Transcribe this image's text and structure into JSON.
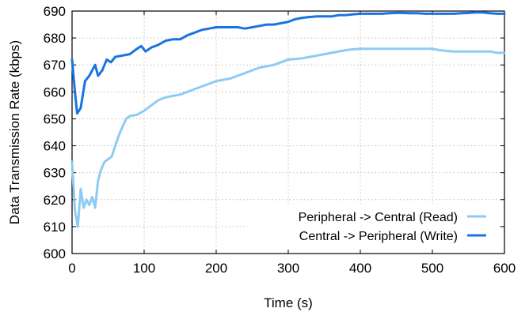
{
  "chart_data": {
    "type": "line",
    "xlabel": "Time (s)",
    "ylabel": "Data Transmission Rate (kbps)",
    "xlim": [
      0,
      600
    ],
    "ylim": [
      600,
      690
    ],
    "x_ticks": [
      0,
      100,
      200,
      300,
      400,
      500,
      600
    ],
    "y_ticks": [
      600,
      610,
      620,
      630,
      640,
      650,
      660,
      670,
      680,
      690
    ],
    "grid": "dotted",
    "legend_position": "bottom-right",
    "series": [
      {
        "name": "Peripheral -> Central (Read)",
        "color": "#8ecbf2",
        "points": [
          [
            0,
            634
          ],
          [
            4,
            616
          ],
          [
            8,
            610
          ],
          [
            12,
            624
          ],
          [
            16,
            617
          ],
          [
            20,
            620
          ],
          [
            24,
            618
          ],
          [
            28,
            621
          ],
          [
            32,
            617
          ],
          [
            36,
            627
          ],
          [
            40,
            631
          ],
          [
            45,
            634
          ],
          [
            50,
            635
          ],
          [
            55,
            636
          ],
          [
            60,
            640
          ],
          [
            65,
            644
          ],
          [
            70,
            647
          ],
          [
            75,
            650
          ],
          [
            80,
            651
          ],
          [
            90,
            651.5
          ],
          [
            100,
            653
          ],
          [
            110,
            655
          ],
          [
            120,
            657
          ],
          [
            130,
            658
          ],
          [
            140,
            658.5
          ],
          [
            150,
            659
          ],
          [
            160,
            660
          ],
          [
            170,
            661
          ],
          [
            180,
            662
          ],
          [
            190,
            663
          ],
          [
            200,
            664
          ],
          [
            210,
            664.5
          ],
          [
            220,
            665
          ],
          [
            230,
            666
          ],
          [
            240,
            667
          ],
          [
            250,
            668
          ],
          [
            260,
            669
          ],
          [
            270,
            669.5
          ],
          [
            280,
            670
          ],
          [
            290,
            671
          ],
          [
            300,
            672
          ],
          [
            310,
            672.2
          ],
          [
            320,
            672.5
          ],
          [
            330,
            673
          ],
          [
            340,
            673.5
          ],
          [
            350,
            674
          ],
          [
            360,
            674.5
          ],
          [
            370,
            675
          ],
          [
            380,
            675.5
          ],
          [
            390,
            675.8
          ],
          [
            400,
            676
          ],
          [
            410,
            676
          ],
          [
            420,
            676
          ],
          [
            430,
            676
          ],
          [
            440,
            676
          ],
          [
            450,
            676
          ],
          [
            460,
            676
          ],
          [
            470,
            676
          ],
          [
            480,
            676
          ],
          [
            490,
            676
          ],
          [
            500,
            676
          ],
          [
            510,
            675.5
          ],
          [
            520,
            675.2
          ],
          [
            530,
            675
          ],
          [
            540,
            675
          ],
          [
            550,
            675
          ],
          [
            560,
            675
          ],
          [
            570,
            675
          ],
          [
            580,
            675
          ],
          [
            590,
            674.5
          ],
          [
            600,
            674.5
          ]
        ]
      },
      {
        "name": "Central -> Peripheral (Write)",
        "color": "#1a73e0",
        "points": [
          [
            0,
            672
          ],
          [
            4,
            660
          ],
          [
            7,
            652
          ],
          [
            12,
            654
          ],
          [
            18,
            664
          ],
          [
            24,
            666
          ],
          [
            28,
            668
          ],
          [
            32,
            670
          ],
          [
            36,
            666
          ],
          [
            42,
            668
          ],
          [
            48,
            672
          ],
          [
            54,
            671
          ],
          [
            60,
            673
          ],
          [
            70,
            673.5
          ],
          [
            80,
            674
          ],
          [
            90,
            676
          ],
          [
            96,
            677
          ],
          [
            102,
            675
          ],
          [
            110,
            676.5
          ],
          [
            120,
            677.5
          ],
          [
            130,
            679
          ],
          [
            140,
            679.5
          ],
          [
            150,
            679.5
          ],
          [
            160,
            681
          ],
          [
            170,
            682
          ],
          [
            180,
            683
          ],
          [
            190,
            683.5
          ],
          [
            200,
            684
          ],
          [
            210,
            684
          ],
          [
            220,
            684
          ],
          [
            230,
            684
          ],
          [
            240,
            683.5
          ],
          [
            250,
            684
          ],
          [
            260,
            684.5
          ],
          [
            270,
            685
          ],
          [
            280,
            685
          ],
          [
            290,
            685.5
          ],
          [
            300,
            686
          ],
          [
            310,
            687
          ],
          [
            320,
            687.5
          ],
          [
            330,
            687.8
          ],
          [
            340,
            688
          ],
          [
            350,
            688
          ],
          [
            360,
            688
          ],
          [
            370,
            688.5
          ],
          [
            380,
            688.5
          ],
          [
            390,
            688.8
          ],
          [
            400,
            689
          ],
          [
            410,
            689
          ],
          [
            420,
            689
          ],
          [
            430,
            689
          ],
          [
            440,
            689.2
          ],
          [
            450,
            689.3
          ],
          [
            460,
            689.3
          ],
          [
            470,
            689.2
          ],
          [
            480,
            689.2
          ],
          [
            490,
            689
          ],
          [
            500,
            689
          ],
          [
            510,
            689
          ],
          [
            520,
            689
          ],
          [
            530,
            689
          ],
          [
            540,
            689.2
          ],
          [
            550,
            689.3
          ],
          [
            560,
            689.5
          ],
          [
            570,
            689.5
          ],
          [
            580,
            689.2
          ],
          [
            590,
            689
          ],
          [
            600,
            689
          ]
        ]
      }
    ]
  }
}
